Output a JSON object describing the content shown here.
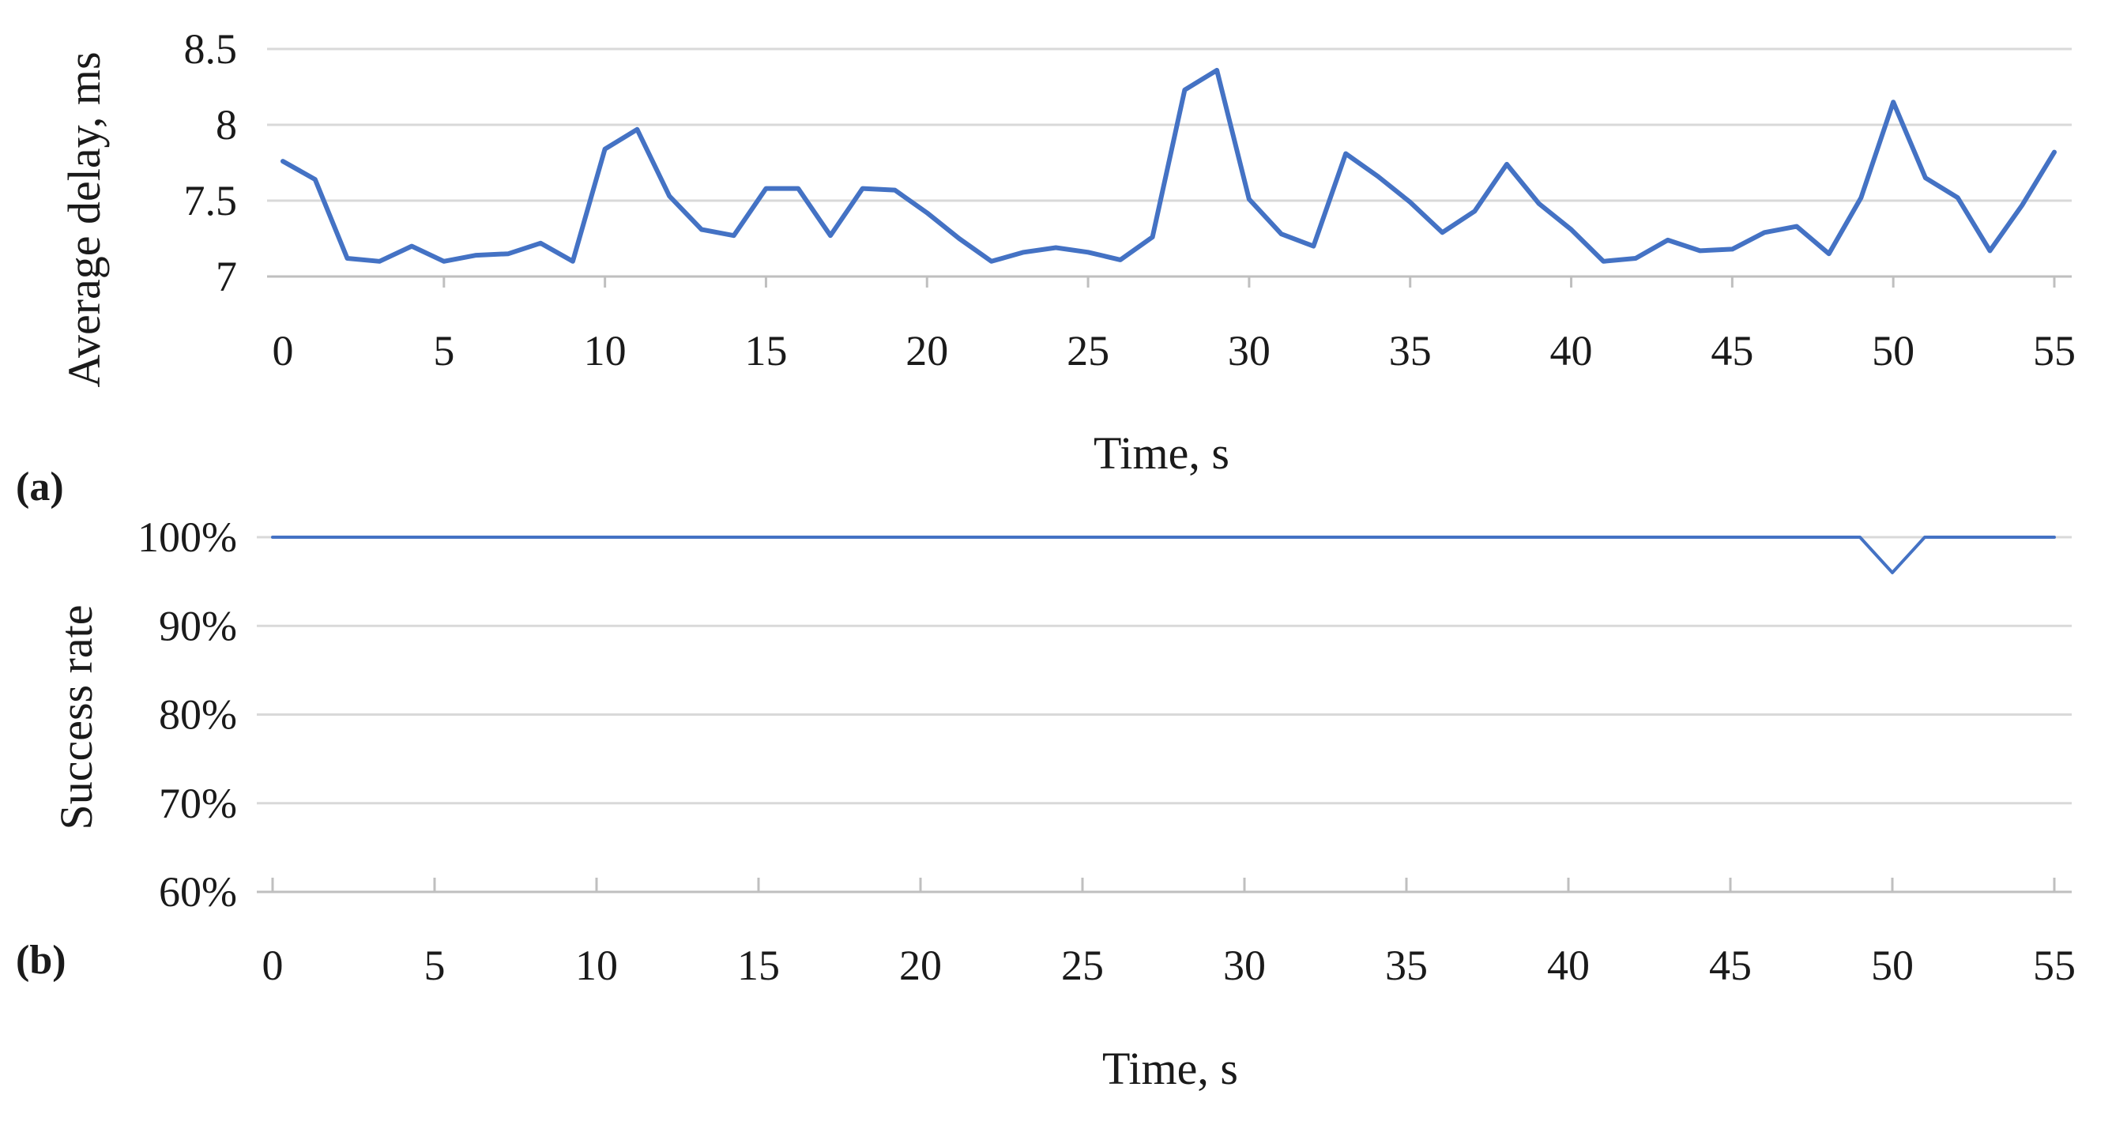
{
  "panels": [
    {
      "label": "(a)"
    },
    {
      "label": "(b)"
    }
  ],
  "chart_data": [
    {
      "type": "line",
      "title": "",
      "xlabel": "Time, s",
      "ylabel": "Average delay, ms",
      "xlim": [
        0,
        55
      ],
      "ylim": [
        7,
        8.5
      ],
      "x_ticks": [
        0,
        5,
        10,
        15,
        20,
        25,
        30,
        35,
        40,
        45,
        50,
        55
      ],
      "x_tick_labels": [
        "0",
        "5",
        "10",
        "15",
        "20",
        "25",
        "30",
        "35",
        "40",
        "45",
        "50",
        "55"
      ],
      "y_ticks": [
        7,
        7.5,
        8,
        8.5
      ],
      "y_tick_labels": [
        "7",
        "7.5",
        "8",
        "8.5"
      ],
      "grid": true,
      "line_color": "#4472c4",
      "series": [
        {
          "x": [
            0,
            1,
            2,
            3,
            4,
            5,
            6,
            7,
            8,
            9,
            10,
            11,
            12,
            13,
            14,
            15,
            16,
            17,
            18,
            19,
            20,
            21,
            22,
            23,
            24,
            25,
            26,
            27,
            28,
            29,
            30,
            31,
            32,
            33,
            34,
            35,
            36,
            37,
            38,
            39,
            40,
            41,
            42,
            43,
            44,
            45,
            46,
            47,
            48,
            49,
            50,
            51,
            52,
            53,
            54,
            55
          ],
          "values": [
            7.76,
            7.64,
            7.12,
            7.1,
            7.2,
            7.1,
            7.14,
            7.15,
            7.22,
            7.1,
            7.84,
            7.97,
            7.53,
            7.31,
            7.27,
            7.58,
            7.58,
            7.27,
            7.58,
            7.57,
            7.42,
            7.25,
            7.1,
            7.16,
            7.19,
            7.16,
            7.11,
            7.26,
            8.23,
            8.36,
            7.51,
            7.28,
            7.2,
            7.81,
            7.66,
            7.49,
            7.29,
            7.43,
            7.74,
            7.48,
            7.31,
            7.1,
            7.12,
            7.24,
            7.17,
            7.18,
            7.29,
            7.33,
            7.15,
            7.52,
            8.15,
            7.65,
            7.52,
            7.17,
            7.47,
            7.82
          ]
        }
      ]
    },
    {
      "type": "line",
      "title": "",
      "xlabel": "Time, s",
      "ylabel": "Success rate",
      "xlim": [
        0,
        55
      ],
      "ylim": [
        0.6,
        1.0
      ],
      "x_ticks": [
        0,
        5,
        10,
        15,
        20,
        25,
        30,
        35,
        40,
        45,
        50,
        55
      ],
      "x_tick_labels": [
        "0",
        "5",
        "10",
        "15",
        "20",
        "25",
        "30",
        "35",
        "40",
        "45",
        "50",
        "55"
      ],
      "y_ticks": [
        0.6,
        0.7,
        0.8,
        0.9,
        1.0
      ],
      "y_tick_labels": [
        "60%",
        "70%",
        "80%",
        "90%",
        "100%"
      ],
      "grid": true,
      "line_color": "#4472c4",
      "series": [
        {
          "x": [
            0,
            49,
            50,
            51,
            55
          ],
          "values": [
            1.0,
            1.0,
            0.96,
            1.0,
            1.0
          ]
        }
      ]
    }
  ]
}
